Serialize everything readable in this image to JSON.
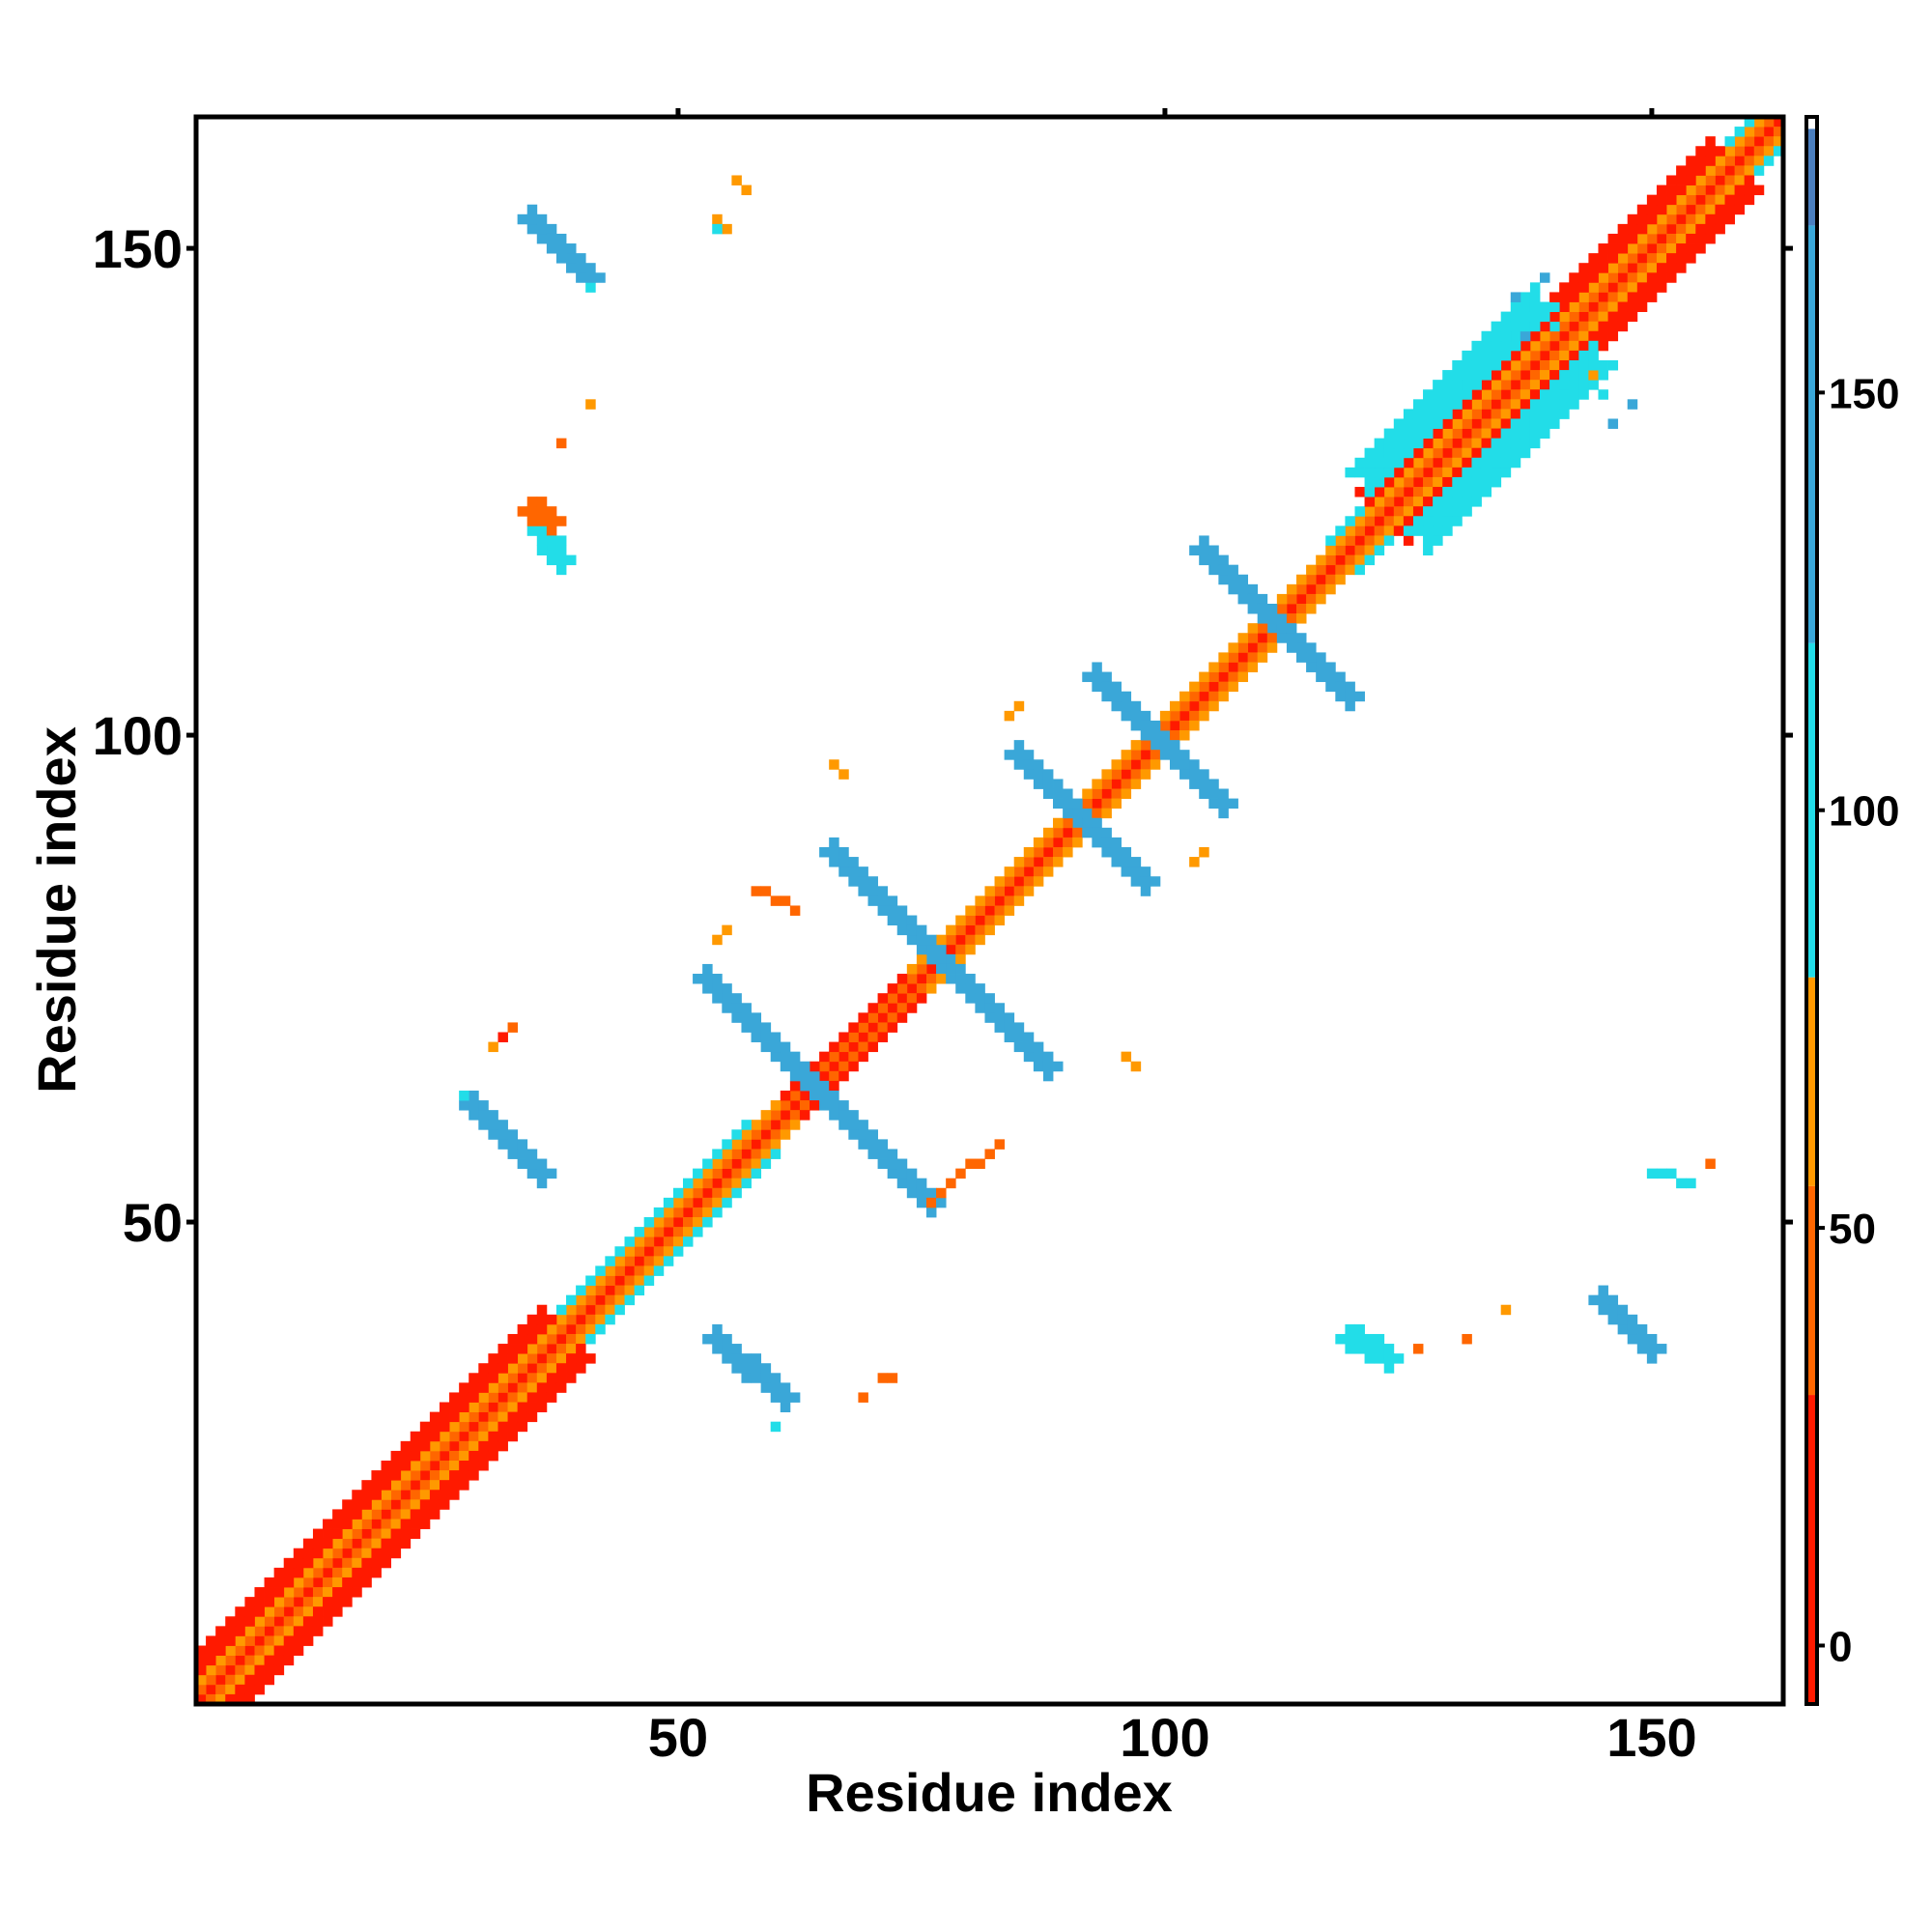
{
  "chart_data": {
    "type": "heatmap",
    "xlabel": "Residue index",
    "ylabel": "Residue index",
    "xlim": [
      1,
      163
    ],
    "ylim": [
      1,
      163
    ],
    "x_ticks": [
      50,
      100,
      150
    ],
    "y_ticks": [
      50,
      100,
      150
    ],
    "grid": false,
    "legend": "colorbar-right",
    "colorbar": {
      "range": [
        -7,
        183
      ],
      "ticks": [
        0,
        50,
        100,
        150
      ],
      "bands": [
        {
          "from": -7,
          "to": 30,
          "color": "#ff1a00"
        },
        {
          "from": 30,
          "to": 55,
          "color": "#ff6600"
        },
        {
          "from": 55,
          "to": 80,
          "color": "#ff9900"
        },
        {
          "from": 80,
          "to": 120,
          "color": "#22dde8"
        },
        {
          "from": 120,
          "to": 170,
          "color": "#3aa7d8"
        },
        {
          "from": 170,
          "to": 183,
          "color": "#4b7fbf"
        }
      ],
      "top_cap_color": "#ffffff"
    },
    "value_colors": {
      "red": "#ff1a00",
      "orange_red": "#ff6600",
      "orange": "#ff9900",
      "cyan": "#22dde8",
      "light_blue": "#3aa7d8",
      "steel_blue": "#4b7fbf"
    },
    "description_units": "residue indices; values are contact-order classes shown by colour",
    "segments": [
      {
        "x": [
          1,
          163
        ],
        "y": [
          1,
          163
        ],
        "value": 5,
        "width": 0
      },
      {
        "x": [
          2,
          163
        ],
        "y": [
          1,
          162
        ],
        "value": 45,
        "width": 0
      },
      {
        "x": [
          1,
          162
        ],
        "y": [
          2,
          163
        ],
        "value": 45,
        "width": 0
      },
      {
        "x": [
          3,
          163
        ],
        "y": [
          1,
          161
        ],
        "value": 70,
        "width": 0
      },
      {
        "x": [
          1,
          161
        ],
        "y": [
          3,
          163
        ],
        "value": 70,
        "width": 0
      },
      {
        "x": [
          4,
          60
        ],
        "y": [
          1,
          57
        ],
        "value": 100,
        "width": 0
      },
      {
        "x": [
          1,
          57
        ],
        "y": [
          4,
          60
        ],
        "value": 100,
        "width": 0
      },
      {
        "x": [
          120,
          163
        ],
        "y": [
          117,
          160
        ],
        "value": 100,
        "width": 0
      },
      {
        "x": [
          117,
          160
        ],
        "y": [
          120,
          163
        ],
        "value": 100,
        "width": 0
      },
      {
        "x": [
          5,
          40
        ],
        "y": [
          1,
          36
        ],
        "value": 20,
        "width": 1
      },
      {
        "x": [
          1,
          36
        ],
        "y": [
          5,
          40
        ],
        "value": 20,
        "width": 1
      },
      {
        "x": [
          125,
          160
        ],
        "y": [
          121,
          156
        ],
        "value": 20,
        "width": 1
      },
      {
        "x": [
          121,
          156
        ],
        "y": [
          125,
          160
        ],
        "value": 20,
        "width": 1
      },
      {
        "x": [
          127,
          144
        ],
        "y": [
          121,
          138
        ],
        "value": 110,
        "width": 2
      },
      {
        "x": [
          121,
          138
        ],
        "y": [
          127,
          144
        ],
        "value": 110,
        "width": 2
      },
      {
        "x": [
          63,
          75
        ],
        "y": [
          61,
          73
        ],
        "value": 10,
        "width": 0
      },
      {
        "x": [
          61,
          73
        ],
        "y": [
          63,
          75
        ],
        "value": 10,
        "width": 0
      },
      {
        "x": [
          53,
          76
        ],
        "y": [
          75,
          52
        ],
        "value": 155,
        "width": 1
      },
      {
        "x": [
          66,
          88
        ],
        "y": [
          88,
          66
        ],
        "value": 155,
        "width": 1
      },
      {
        "x": [
          85,
          98
        ],
        "y": [
          98,
          85
        ],
        "value": 155,
        "width": 1
      },
      {
        "x": [
          93,
          106
        ],
        "y": [
          106,
          93
        ],
        "value": 155,
        "width": 1
      },
      {
        "x": [
          104,
          119
        ],
        "y": [
          119,
          104
        ],
        "value": 150,
        "width": 1
      },
      {
        "x": [
          35,
          41
        ],
        "y": [
          153,
          147
        ],
        "value": 150,
        "width": 1
      },
      {
        "x": [
          36,
          38
        ],
        "y": [
          121,
          118
        ],
        "value": 105,
        "width": 1
      },
      {
        "x": [
          35,
          37
        ],
        "y": [
          123,
          122
        ],
        "value": 50,
        "width": 1
      },
      {
        "x": [
          29,
          36
        ],
        "y": [
          62,
          55
        ],
        "value": 150,
        "width": 1
      },
      {
        "x": [
          54,
          61
        ],
        "y": [
          38,
          32
        ],
        "value": 150,
        "width": 1
      },
      {
        "x": [
          119,
          123
        ],
        "y": [
          38,
          36
        ],
        "value": 105,
        "width": 1
      },
      {
        "x": [
          145,
          150
        ],
        "y": [
          42,
          37
        ],
        "value": 150,
        "width": 1
      },
      {
        "x": [
          150,
          154
        ],
        "y": [
          55,
          54
        ],
        "value": 100,
        "width": 0
      },
      {
        "x": [
          58,
          62
        ],
        "y": [
          84,
          82
        ],
        "value": 50,
        "width": 0
      },
      {
        "x": [
          78,
          83
        ],
        "y": [
          54,
          58
        ],
        "value": 50,
        "width": 0
      },
      {
        "x": [
          56,
          57
        ],
        "y": [
          157,
          156
        ],
        "value": 70,
        "width": 0
      },
      {
        "x": [
          54,
          55
        ],
        "y": [
          153,
          152
        ],
        "value": 70,
        "width": 0
      }
    ],
    "points": [
      {
        "x": 54,
        "y": 152,
        "value": 105
      },
      {
        "x": 41,
        "y": 146,
        "value": 100
      },
      {
        "x": 41,
        "y": 134,
        "value": 70
      },
      {
        "x": 38,
        "y": 130,
        "value": 50
      },
      {
        "x": 33,
        "y": 70,
        "value": 50
      },
      {
        "x": 32,
        "y": 69,
        "value": 20
      },
      {
        "x": 31,
        "y": 68,
        "value": 55
      },
      {
        "x": 28,
        "y": 63,
        "value": 100
      },
      {
        "x": 85,
        "y": 103,
        "value": 70
      },
      {
        "x": 84,
        "y": 102,
        "value": 70
      },
      {
        "x": 66,
        "y": 97,
        "value": 70
      },
      {
        "x": 67,
        "y": 96,
        "value": 70
      },
      {
        "x": 104,
        "y": 88,
        "value": 70
      },
      {
        "x": 103,
        "y": 87,
        "value": 70
      },
      {
        "x": 96,
        "y": 67,
        "value": 70
      },
      {
        "x": 97,
        "y": 66,
        "value": 70
      },
      {
        "x": 55,
        "y": 80,
        "value": 55
      },
      {
        "x": 54,
        "y": 79,
        "value": 60
      },
      {
        "x": 77,
        "y": 53,
        "value": 50
      },
      {
        "x": 76,
        "y": 52,
        "value": 50
      },
      {
        "x": 69,
        "y": 32,
        "value": 50
      },
      {
        "x": 71,
        "y": 34,
        "value": 50
      },
      {
        "x": 72,
        "y": 34,
        "value": 50
      },
      {
        "x": 60,
        "y": 29,
        "value": 100
      },
      {
        "x": 131,
        "y": 38,
        "value": 50
      },
      {
        "x": 135,
        "y": 41,
        "value": 70
      },
      {
        "x": 156,
        "y": 56,
        "value": 50
      },
      {
        "x": 126,
        "y": 37,
        "value": 50
      },
      {
        "x": 139,
        "y": 147,
        "value": 150
      },
      {
        "x": 136,
        "y": 145,
        "value": 150
      },
      {
        "x": 146,
        "y": 132,
        "value": 150
      },
      {
        "x": 148,
        "y": 134,
        "value": 150
      },
      {
        "x": 145,
        "y": 135,
        "value": 100
      },
      {
        "x": 144,
        "y": 137,
        "value": 70
      },
      {
        "x": 140,
        "y": 142,
        "value": 100
      },
      {
        "x": 137,
        "y": 141,
        "value": 150
      },
      {
        "x": 141,
        "y": 136,
        "value": 100
      }
    ]
  }
}
